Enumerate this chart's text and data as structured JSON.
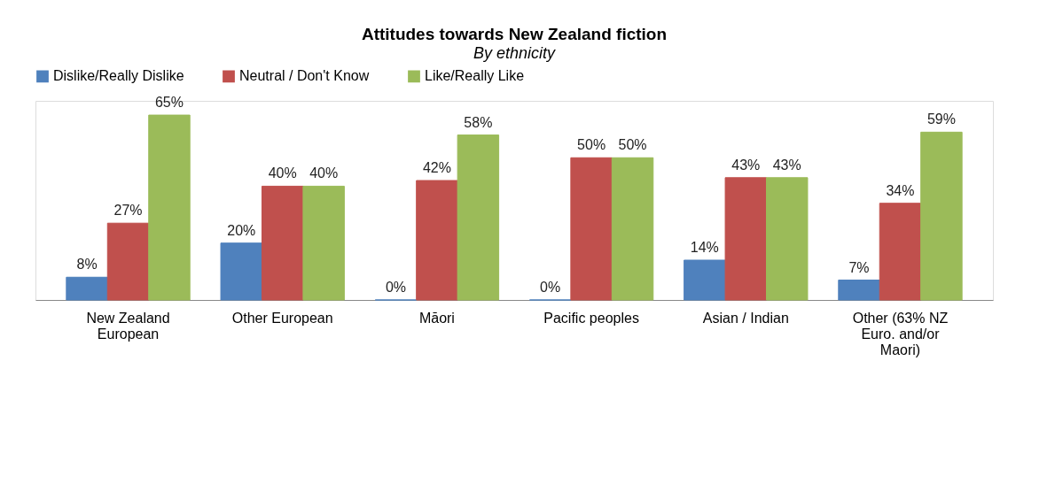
{
  "chart_data": {
    "type": "bar",
    "title": "Attitudes towards New Zealand fiction",
    "subtitle": "By ethnicity",
    "categories": [
      "New Zealand European",
      "Other European",
      "Māori",
      "Pacific peoples",
      "Asian / Indian",
      "Other (63% NZ Euro. and/or Maori)"
    ],
    "series": [
      {
        "name": "Dislike/Really Dislike",
        "color": "#4f81bd",
        "values": [
          8,
          20,
          0,
          0,
          14,
          7
        ],
        "value_labels": [
          "8%",
          "20%",
          "0%",
          "0%",
          "14%",
          "7%"
        ]
      },
      {
        "name": "Neutral / Don't Know",
        "color": "#c0504d",
        "values": [
          27,
          40,
          42,
          50,
          43,
          34
        ],
        "value_labels": [
          "27%",
          "40%",
          "42%",
          "50%",
          "43%",
          "34%"
        ]
      },
      {
        "name": "Like/Really Like",
        "color": "#9bbb59",
        "values": [
          65,
          40,
          58,
          50,
          43,
          59
        ],
        "value_labels": [
          "65%",
          "40%",
          "58%",
          "50%",
          "43%",
          "59%"
        ]
      }
    ],
    "ylim": [
      0,
      70
    ],
    "legend": "top",
    "grid": false
  }
}
